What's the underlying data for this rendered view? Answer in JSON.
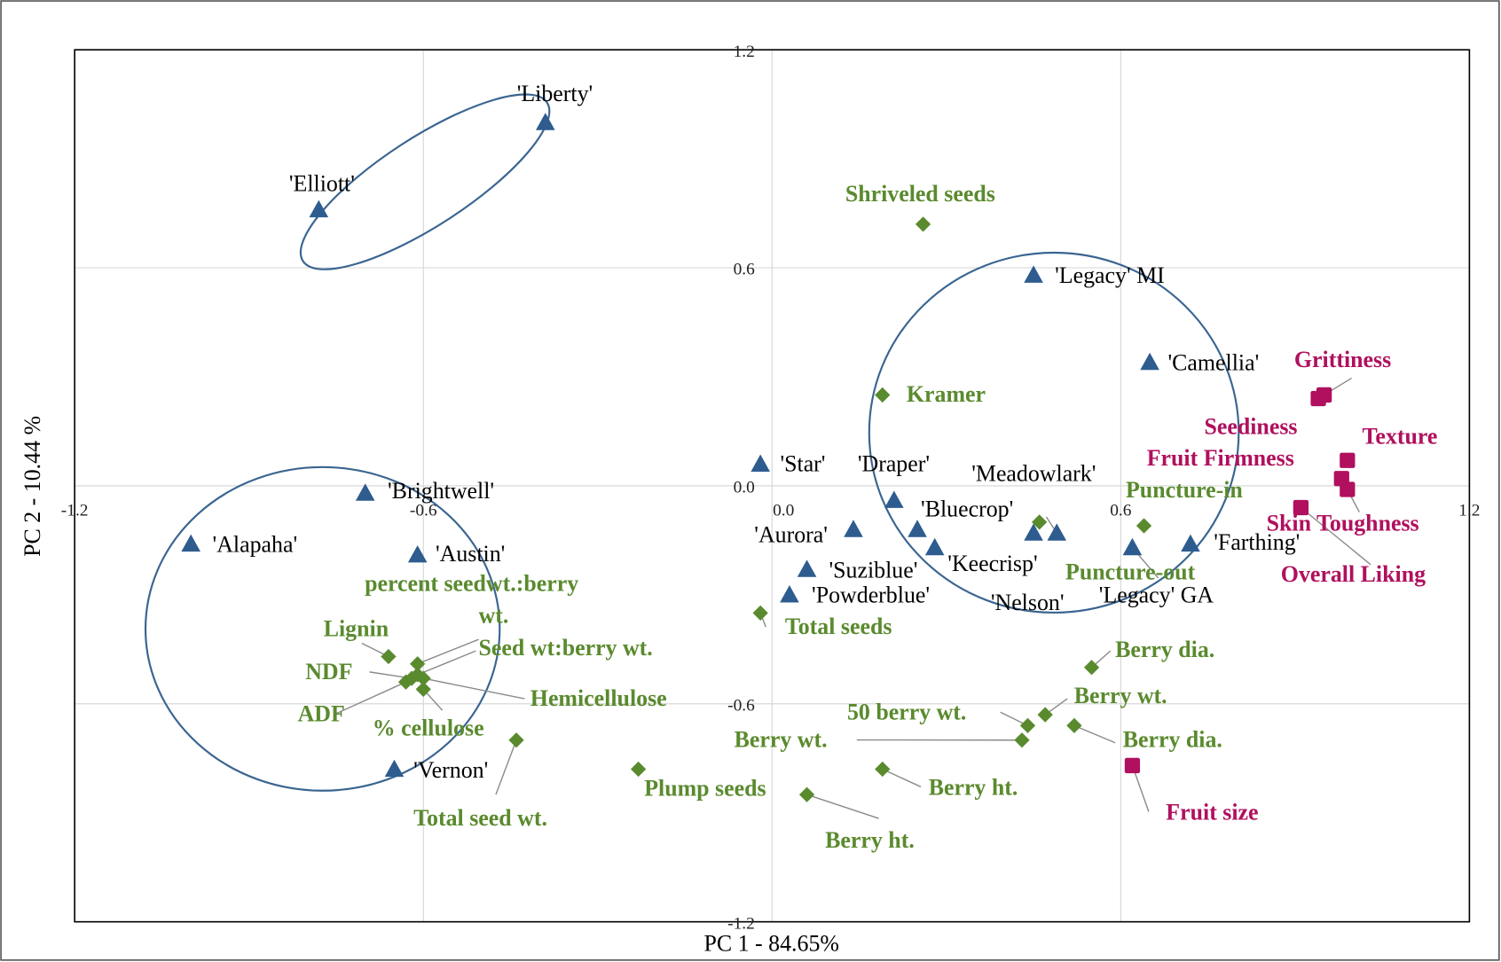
{
  "chart_data": {
    "type": "scatter",
    "x_label": "PC 1 - 84.65%",
    "y_label": "PC 2 - 10.44 %",
    "xlim": [
      -1.2,
      1.2
    ],
    "ylim": [
      -1.2,
      1.2
    ],
    "xticks": [
      -1.2,
      -0.6,
      {
        "value": 0,
        "label": "0.0"
      },
      0.6,
      1.2
    ],
    "yticks": [
      -1.2,
      -0.6,
      {
        "value": 0,
        "label": "0.0"
      },
      0.6,
      1.2
    ],
    "grid": true,
    "series": [
      {
        "marker": "triangle",
        "color": "#2e5c8f",
        "label_color": "#000000",
        "label_bold": false,
        "labels": [
          "'Liberty'",
          "'Elliott'",
          "'Legacy' MI",
          "'Camellia'",
          "'Star'",
          "'Draper'",
          "'Brightwell'",
          "'Alapaha'",
          "'Austin'",
          "'Aurora'",
          "'Bluecrop'",
          "'Keecrisp'",
          "'Meadowlark'",
          "'Nelson'",
          "'Suziblue'",
          "'Powderblue'",
          "'Legacy' GA",
          "'Farthing'",
          "'Vernon'"
        ],
        "x": [
          -0.39,
          -0.78,
          0.45,
          0.65,
          -0.02,
          0.21,
          -0.7,
          -1.0,
          -0.61,
          0.14,
          0.25,
          0.28,
          0.49,
          0.45,
          0.06,
          0.03,
          0.62,
          0.72,
          -0.65
        ],
        "y": [
          1.0,
          0.76,
          0.58,
          0.34,
          0.06,
          -0.04,
          -0.02,
          -0.16,
          -0.19,
          -0.12,
          -0.12,
          -0.17,
          -0.13,
          -0.13,
          -0.23,
          -0.3,
          -0.17,
          -0.16,
          -0.78
        ]
      },
      {
        "marker": "diamond",
        "color": "#5a8a2e",
        "label_color": "#5a8a2e",
        "label_bold": true,
        "labels": [
          "Shriveled seeds",
          "Kramer",
          "Puncture-in",
          "Puncture-out",
          "Total seeds",
          "Berry dia.",
          "Berry wt.",
          "50 berry wt.",
          "Berry wt.",
          "Berry dia.",
          "Berry ht.",
          "Berry ht.",
          "Plump seeds",
          "Total seed wt.",
          "Lignin",
          "percent seedwt.:berry wt.",
          "Seed wt:berry wt.",
          "NDF",
          "Hemicellulose",
          "ADF",
          "% cellulose"
        ],
        "x": [
          0.26,
          0.19,
          0.64,
          0.46,
          -0.02,
          0.55,
          0.47,
          0.44,
          0.43,
          0.52,
          0.19,
          0.06,
          -0.23,
          -0.44,
          -0.66,
          -0.61,
          -0.61,
          -0.62,
          -0.6,
          -0.63,
          -0.6
        ],
        "y": [
          0.72,
          0.25,
          -0.11,
          -0.1,
          -0.35,
          -0.5,
          -0.63,
          -0.66,
          -0.7,
          -0.66,
          -0.78,
          -0.85,
          -0.78,
          -0.7,
          -0.47,
          -0.49,
          -0.52,
          -0.53,
          -0.53,
          -0.54,
          -0.56
        ]
      },
      {
        "marker": "square",
        "color": "#b0105e",
        "label_color": "#b0105e",
        "label_bold": true,
        "labels": [
          "Grittiness",
          "Seediness",
          "Texture",
          "Fruit Firmness",
          "Skin Toughness",
          "Overall Liking",
          "Fruit size"
        ],
        "x": [
          0.95,
          0.94,
          0.99,
          0.98,
          0.99,
          0.91,
          0.62
        ],
        "y": [
          0.25,
          0.24,
          0.07,
          0.02,
          -0.01,
          -0.06,
          -0.77
        ]
      }
    ]
  }
}
